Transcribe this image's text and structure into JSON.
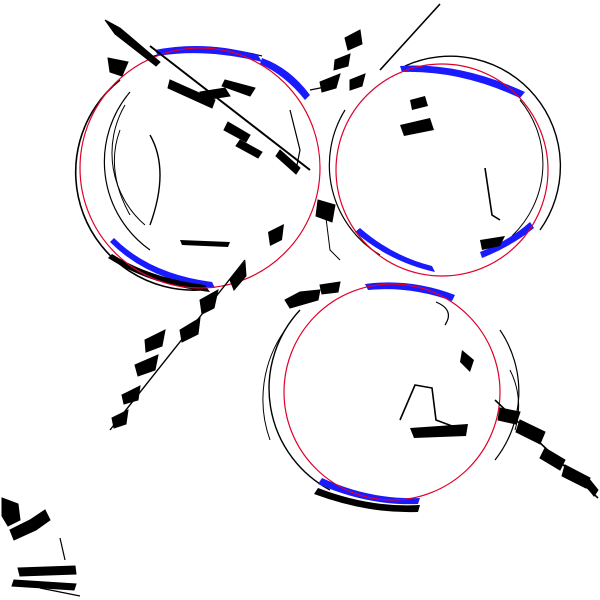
{
  "canvas": {
    "background": "#ffffff",
    "colors": {
      "ink": "#000000",
      "fit_line": "#e0002a",
      "highlight": "#1a1aff"
    }
  },
  "detected_circles": [
    {
      "id": "top-left"
    },
    {
      "id": "top-right"
    },
    {
      "id": "bottom"
    }
  ],
  "features": [
    "diagonal-streak-top-left",
    "diagonal-streak-top-right",
    "diagonal-streak-lower-left",
    "diagonal-streak-lower-right",
    "corner-scribble-bottom-left"
  ]
}
